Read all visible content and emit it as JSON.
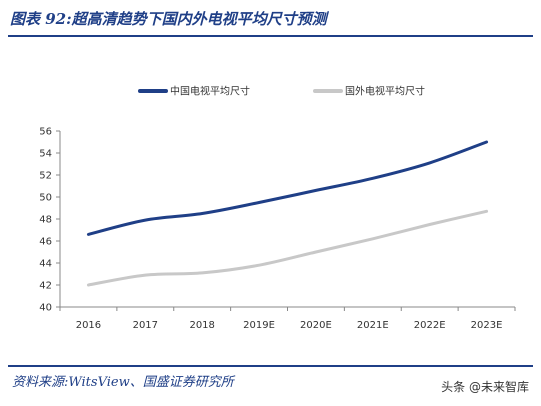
{
  "figure": {
    "title": "图表 92:超高清趋势下国内外电视平均尺寸预测",
    "source": "资料来源:WitsView、国盛证券研究所",
    "watermark": "头条 @未来智库"
  },
  "colors": {
    "heading": "#1f3f87",
    "series_domestic": "#1f3f87",
    "series_foreign": "#c8c8c8",
    "axis": "#888888"
  },
  "chart_data": {
    "type": "line",
    "title": "",
    "xlabel": "",
    "ylabel": "",
    "categories": [
      "2016",
      "2017",
      "2018",
      "2019E",
      "2020E",
      "2021E",
      "2022E",
      "2023E"
    ],
    "ylim": [
      40,
      56
    ],
    "yticks": [
      40,
      42,
      44,
      46,
      48,
      50,
      52,
      54,
      56
    ],
    "grid": false,
    "legend_position": "top",
    "series": [
      {
        "name": "中国电视平均尺寸",
        "color": "#1f3f87",
        "values": [
          46.6,
          47.9,
          48.5,
          49.5,
          50.6,
          51.7,
          53.1,
          55.0
        ]
      },
      {
        "name": "国外电视平均尺寸",
        "color": "#c8c8c8",
        "values": [
          42.0,
          42.9,
          43.1,
          43.8,
          45.0,
          46.2,
          47.5,
          48.7
        ]
      }
    ]
  }
}
